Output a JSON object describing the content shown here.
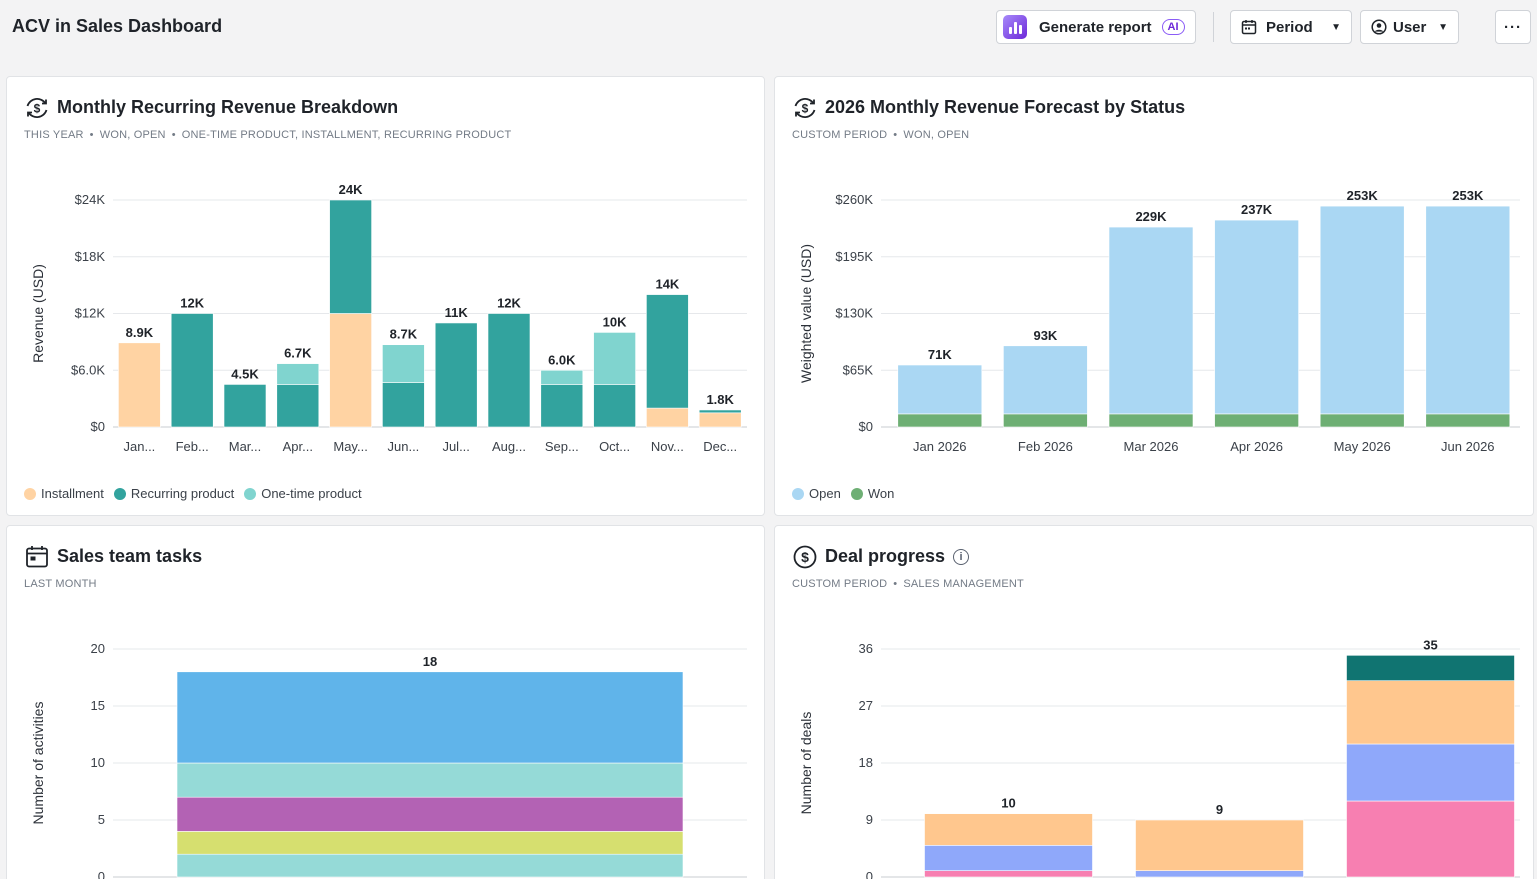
{
  "header": {
    "title": "ACV in Sales Dashboard",
    "generate_label": "Generate report",
    "ai_badge": "AI",
    "period_label": "Period",
    "user_label": "User",
    "more_label": "···"
  },
  "cards": [
    {
      "title": "Monthly Recurring Revenue Breakdown",
      "subtitle": [
        "THIS YEAR",
        "WON, OPEN",
        "ONE-TIME PRODUCT, INSTALLMENT, RECURRING PRODUCT"
      ],
      "icon": "recurring-revenue-icon"
    },
    {
      "title": "2026 Monthly Revenue Forecast by Status",
      "subtitle": [
        "CUSTOM PERIOD",
        "WON, OPEN"
      ],
      "icon": "recurring-revenue-icon"
    },
    {
      "title": "Sales team tasks",
      "subtitle": [
        "LAST MONTH"
      ],
      "icon": "calendar-icon"
    },
    {
      "title": "Deal progress",
      "subtitle": [
        "CUSTOM PERIOD",
        "SALES MANAGEMENT"
      ],
      "icon": "dollar-icon"
    }
  ],
  "chart_data": [
    {
      "type": "bar",
      "stacked": true,
      "categories": [
        "Jan...",
        "Feb...",
        "Mar...",
        "Apr...",
        "May...",
        "Jun...",
        "Jul...",
        "Aug...",
        "Sep...",
        "Oct...",
        "Nov...",
        "Dec..."
      ],
      "series": [
        {
          "name": "Installment",
          "color": "#ffd3a3",
          "values": [
            8900,
            0,
            0,
            0,
            12000,
            0,
            0,
            0,
            0,
            0,
            2000,
            1500
          ]
        },
        {
          "name": "Recurring product",
          "color": "#32a39e",
          "values": [
            0,
            12000,
            4500,
            4500,
            12000,
            4700,
            11000,
            12000,
            4500,
            4500,
            12000,
            300
          ]
        },
        {
          "name": "One-time product",
          "color": "#80d4cf",
          "values": [
            0,
            0,
            0,
            2200,
            0,
            4000,
            0,
            0,
            1500,
            5500,
            0,
            0
          ]
        }
      ],
      "totals": [
        "8.9K",
        "12K",
        "4.5K",
        "6.7K",
        "24K",
        "8.7K",
        "11K",
        "12K",
        "6.0K",
        "10K",
        "14K",
        "1.8K"
      ],
      "ylabel": "Revenue (USD)",
      "yticks": [
        "$0",
        "$6.0K",
        "$12K",
        "$18K",
        "$24K"
      ],
      "ylim": [
        0,
        24000
      ],
      "legend": "bottom-left",
      "grid": true
    },
    {
      "type": "bar",
      "stacked": true,
      "categories": [
        "Jan 2026",
        "Feb 2026",
        "Mar 2026",
        "Apr 2026",
        "May 2026",
        "Jun 2026"
      ],
      "series": [
        {
          "name": "Won",
          "color": "#6eaf74",
          "values": [
            15000,
            15000,
            15000,
            15000,
            15000,
            15000
          ]
        },
        {
          "name": "Open",
          "color": "#aad7f3",
          "values": [
            56000,
            78000,
            214000,
            222000,
            238000,
            238000
          ]
        }
      ],
      "legend_order": [
        "Open",
        "Won"
      ],
      "totals": [
        "71K",
        "93K",
        "229K",
        "237K",
        "253K",
        "253K"
      ],
      "ylabel": "Weighted value (USD)",
      "yticks": [
        "$0",
        "$65K",
        "$130K",
        "$195K",
        "$260K"
      ],
      "ylim": [
        0,
        260000
      ],
      "legend": "bottom-left",
      "grid": true
    },
    {
      "type": "bar",
      "stacked": true,
      "categories": [
        ""
      ],
      "series": [
        {
          "color": "#95dad7",
          "values": [
            2
          ]
        },
        {
          "color": "#d6df6f",
          "values": [
            2
          ]
        },
        {
          "color": "#b362b4",
          "values": [
            3
          ]
        },
        {
          "color": "#95dad7",
          "values": [
            3
          ]
        },
        {
          "color": "#60b4ea",
          "values": [
            8
          ]
        }
      ],
      "totals": [
        "18"
      ],
      "ylabel": "Number of activities",
      "yticks": [
        "0",
        "5",
        "10",
        "15",
        "20"
      ],
      "ylim": [
        0,
        20
      ],
      "grid": true
    },
    {
      "type": "bar",
      "stacked": true,
      "categories": [
        "",
        "",
        ""
      ],
      "series": [
        {
          "color": "#f77fb1",
          "values": [
            1,
            0,
            12
          ]
        },
        {
          "color": "#8fa8fa",
          "values": [
            4,
            1,
            9
          ]
        },
        {
          "color": "#ffc78e",
          "values": [
            5,
            8,
            10
          ]
        },
        {
          "color": "#107471",
          "values": [
            0,
            0,
            4
          ]
        }
      ],
      "totals": [
        "10",
        "9",
        "35"
      ],
      "ylabel": "Number of deals",
      "yticks": [
        "0",
        "9",
        "18",
        "27",
        "36"
      ],
      "ylim": [
        0,
        36
      ],
      "grid": true
    }
  ]
}
